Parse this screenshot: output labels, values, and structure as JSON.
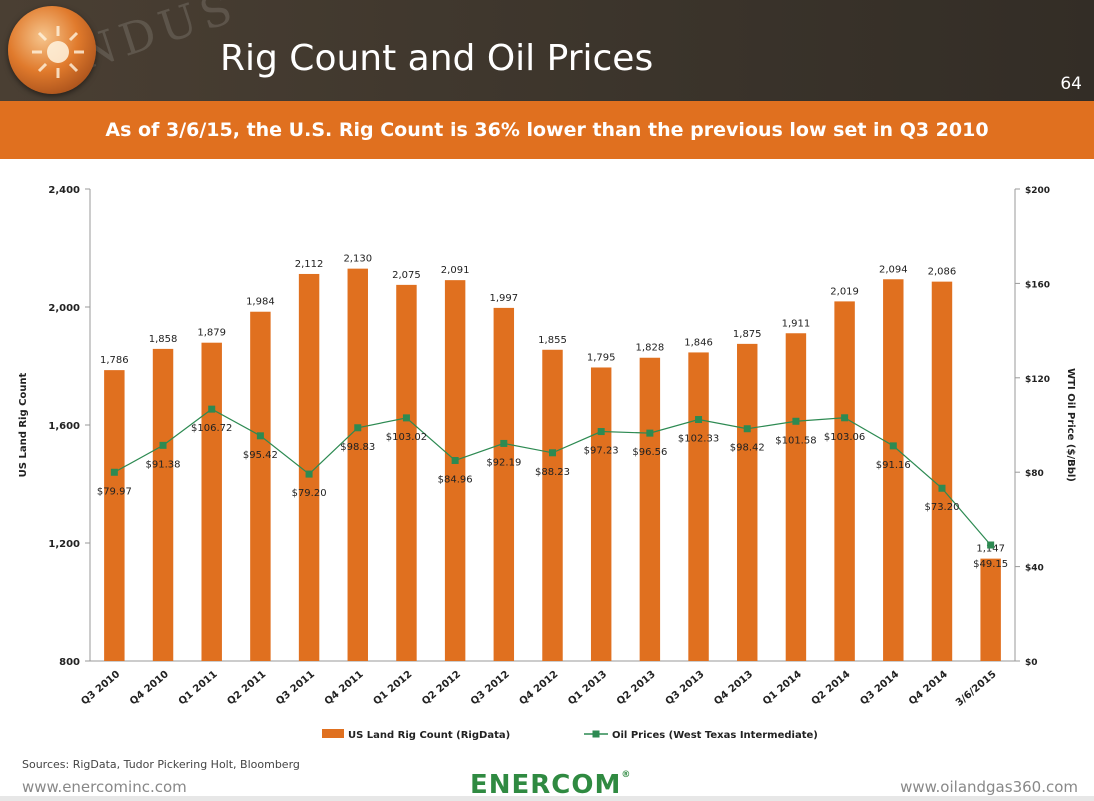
{
  "header": {
    "title": "Rig Count and Oil Prices",
    "page_number": "64"
  },
  "banner": {
    "text": "As of 3/6/15, the U.S. Rig Count is 36% lower than the previous low set in Q3 2010"
  },
  "chart_data": {
    "type": "bar",
    "categories": [
      "Q3 2010",
      "Q4 2010",
      "Q1 2011",
      "Q2 2011",
      "Q3 2011",
      "Q4 2011",
      "Q1 2012",
      "Q2 2012",
      "Q3 2012",
      "Q4 2012",
      "Q1 2013",
      "Q2 2013",
      "Q3 2013",
      "Q4 2013",
      "Q1 2014",
      "Q2 2014",
      "Q3 2014",
      "Q4 2014",
      "3/6/2015"
    ],
    "series": [
      {
        "name": "US Land Rig Count (RigData)",
        "type": "bar",
        "axis": "left",
        "color": "#e0701f",
        "values": [
          1786,
          1858,
          1879,
          1984,
          2112,
          2130,
          2075,
          2091,
          1997,
          1855,
          1795,
          1828,
          1846,
          1875,
          1911,
          2019,
          2094,
          2086,
          1147
        ],
        "labels": [
          "1,786",
          "1,858",
          "1,879",
          "1,984",
          "2,112",
          "2,130",
          "2,075",
          "2,091",
          "1,997",
          "1,855",
          "1,795",
          "1,828",
          "1,846",
          "1,875",
          "1,911",
          "2,019",
          "2,094",
          "2,086",
          "1,147"
        ]
      },
      {
        "name": "Oil Prices (West Texas Intermediate)",
        "type": "line",
        "axis": "right",
        "color": "#2d8a52",
        "values": [
          79.97,
          91.38,
          106.72,
          95.42,
          79.2,
          98.83,
          103.02,
          84.96,
          92.19,
          88.23,
          97.23,
          96.56,
          102.33,
          98.42,
          101.58,
          103.06,
          91.16,
          73.2,
          49.15
        ],
        "labels": [
          "$79.97",
          "$91.38",
          "$106.72",
          "$95.42",
          "$79.20",
          "$98.83",
          "$103.02",
          "$84.96",
          "$92.19",
          "$88.23",
          "$97.23",
          "$96.56",
          "$102.33",
          "$98.42",
          "$101.58",
          "$103.06",
          "$91.16",
          "$73.20",
          "$49.15"
        ]
      }
    ],
    "ylabel": "US Land Rig Count",
    "y2label": "WTI Oil Price ($/Bbl)",
    "ylim": [
      800,
      2400
    ],
    "y2lim": [
      0,
      200
    ],
    "yticks": [
      "2,400",
      "2,000",
      "1,600",
      "1,200",
      "800"
    ],
    "yticks_values": [
      2400,
      2000,
      1600,
      1200,
      800
    ],
    "y2ticks": [
      "$200",
      "$160",
      "$120",
      "$80",
      "$40",
      "$0"
    ],
    "y2ticks_values": [
      200,
      160,
      120,
      80,
      40,
      0
    ],
    "grid": false,
    "legend_position": "bottom"
  },
  "footer": {
    "sources": "Sources: RigData, Tudor Pickering Holt, Bloomberg",
    "left_url": "www.enercominc.com",
    "right_url": "www.oilandgas360.com",
    "brand": "ENERCOM",
    "brand_mark": "®"
  }
}
